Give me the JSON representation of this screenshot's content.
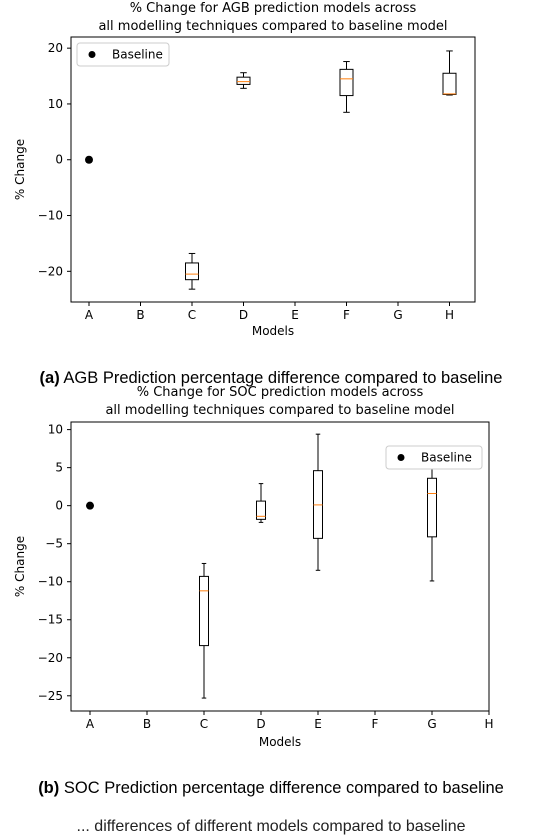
{
  "chart_data": [
    {
      "type": "box",
      "title_line1": "% Change for AGB prediction models across",
      "title_line2": "all modelling techniques compared to baseline model",
      "xlabel": "Models",
      "ylabel": "% Change",
      "categories": [
        "A",
        "B",
        "C",
        "D",
        "E",
        "F",
        "G",
        "H"
      ],
      "ylim": [
        -25.5,
        22
      ],
      "yticks": [
        20,
        10,
        0,
        -10,
        -20
      ],
      "baseline": {
        "category": "A",
        "value": 0
      },
      "legend": {
        "label": "Baseline",
        "position": "top-left"
      },
      "boxes": [
        {
          "category": "C",
          "whisker_low": -23.2,
          "q1": -21.5,
          "median": -20.5,
          "q3": -18.5,
          "whisker_high": -16.8
        },
        {
          "category": "D",
          "whisker_low": 12.8,
          "q1": 13.5,
          "median": 14.0,
          "q3": 14.8,
          "whisker_high": 15.6
        },
        {
          "category": "F",
          "whisker_low": 8.5,
          "q1": 11.5,
          "median": 14.5,
          "q3": 16.2,
          "whisker_high": 17.6
        },
        {
          "category": "H",
          "whisker_low": 11.6,
          "q1": 11.7,
          "median": 11.8,
          "q3": 15.5,
          "whisker_high": 19.5
        }
      ]
    },
    {
      "type": "box",
      "title_line1": "% Change for SOC prediction models across",
      "title_line2": "all modelling techniques compared to baseline model",
      "xlabel": "Models",
      "ylabel": "% Change",
      "categories": [
        "A",
        "B",
        "C",
        "D",
        "E",
        "F",
        "G",
        "H"
      ],
      "ylim": [
        -27,
        11
      ],
      "yticks": [
        10,
        5,
        0,
        -5,
        -10,
        -15,
        -20,
        -25
      ],
      "baseline": {
        "category": "A",
        "value": 0
      },
      "legend": {
        "label": "Baseline",
        "position": "top-right"
      },
      "boxes": [
        {
          "category": "C",
          "whisker_low": -25.3,
          "q1": -18.4,
          "median": -11.2,
          "q3": -9.3,
          "whisker_high": -7.6
        },
        {
          "category": "D",
          "whisker_low": -2.2,
          "q1": -1.8,
          "median": -1.4,
          "q3": 0.6,
          "whisker_high": 2.9
        },
        {
          "category": "E",
          "whisker_low": -8.5,
          "q1": -4.3,
          "median": 0.1,
          "q3": 4.6,
          "whisker_high": 9.4
        },
        {
          "category": "G",
          "whisker_low": -9.9,
          "q1": -4.1,
          "median": 1.6,
          "q3": 3.6,
          "whisker_high": 5.7
        }
      ]
    }
  ],
  "captions": {
    "a_label": "(a)",
    "a_text": " AGB Prediction percentage difference compared to baseline",
    "b_label": "(b)",
    "b_text": " SOC Prediction percentage difference compared to baseline"
  },
  "footer": "... differences of different models compared to baseline"
}
